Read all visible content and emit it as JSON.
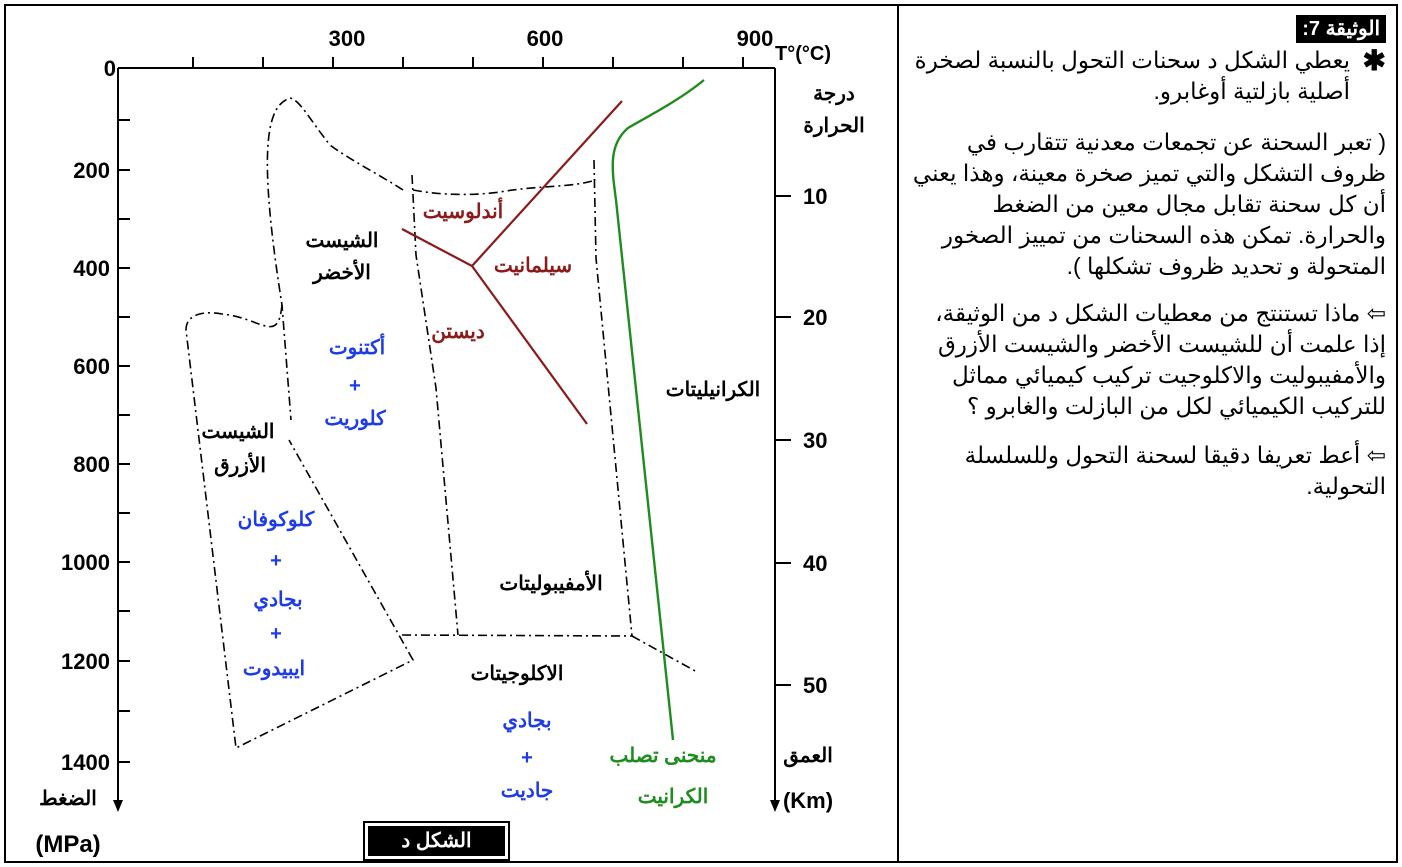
{
  "diagram": {
    "temperature_axis": {
      "ticks": [
        "300",
        "600",
        "900"
      ],
      "unit": "T°(°C)",
      "label": [
        "درجة",
        "الحرارة"
      ]
    },
    "pressure_axis": {
      "ticks": [
        "0",
        "200",
        "400",
        "600",
        "800",
        "1000",
        "1200",
        "1400"
      ],
      "label": "الضغط",
      "unit": "(MPa)"
    },
    "depth_axis": {
      "ticks": [
        "10",
        "20",
        "30",
        "40",
        "50"
      ],
      "label": "العمق",
      "unit": "(Km)"
    },
    "facies": {
      "green_schist": [
        "الشيست",
        "الأخضر"
      ],
      "green_schist_minerals": [
        "أكتنوت",
        "+",
        "كلوريت"
      ],
      "blue_schist": [
        "الشيست",
        "الأزرق"
      ],
      "blue_schist_minerals": [
        "كلوكوفان",
        "+",
        "بجادي",
        "+",
        "ايبيدوت"
      ],
      "amphibolite": "الأمفيبوليتات",
      "granulite": "الكرانيليتات",
      "eclogite": "الاكلوجيتات",
      "eclogite_minerals": [
        "بجادي",
        "+",
        "جاديت"
      ]
    },
    "alumino_silicates": {
      "andalusite": "أندلوسيت",
      "sillimanite": "سيلمانيت",
      "kyanite": "ديستن"
    },
    "granite_curve_label": [
      "منحنى تصلب",
      "الكرانيت"
    ],
    "figure_label": "الشكل د",
    "colors": {
      "alumino_silicate": "#8B1A1A",
      "granite_curve": "#1E8C1E",
      "mineral_text": "#1E3CE6"
    }
  },
  "document": {
    "title": "الوثيقة 7:",
    "star": "✱",
    "intro": "يعطي الشكل د سحنات التحول بالنسبة لصخرة أصلية بازلتية أوغابرو.",
    "definition": "( تعبر السحنة عن تجمعات معدنية تتقارب في ظروف التشكل والتي تميز صخرة معينة، وهذا يعني أن كل سحنة تقابل مجال معين من الضغط والحرارة. تمكن هذه السحنات من تمييز الصخور المتحولة و تحديد ظروف تشكلها ).",
    "arrow": "⇦",
    "question1": "ماذا تستنتج من معطيات الشكل د من الوثيقة، إذا علمت أن للشيست الأخضر والشيست الأزرق والأمفيبوليت والاكلوجيت تركيب كيميائي مماثل للتركيب الكيميائي لكل من البازلت والغابرو ؟",
    "question2": "أعط تعريفا دقيقا لسحنة التحول وللسلسلة التحولية."
  }
}
